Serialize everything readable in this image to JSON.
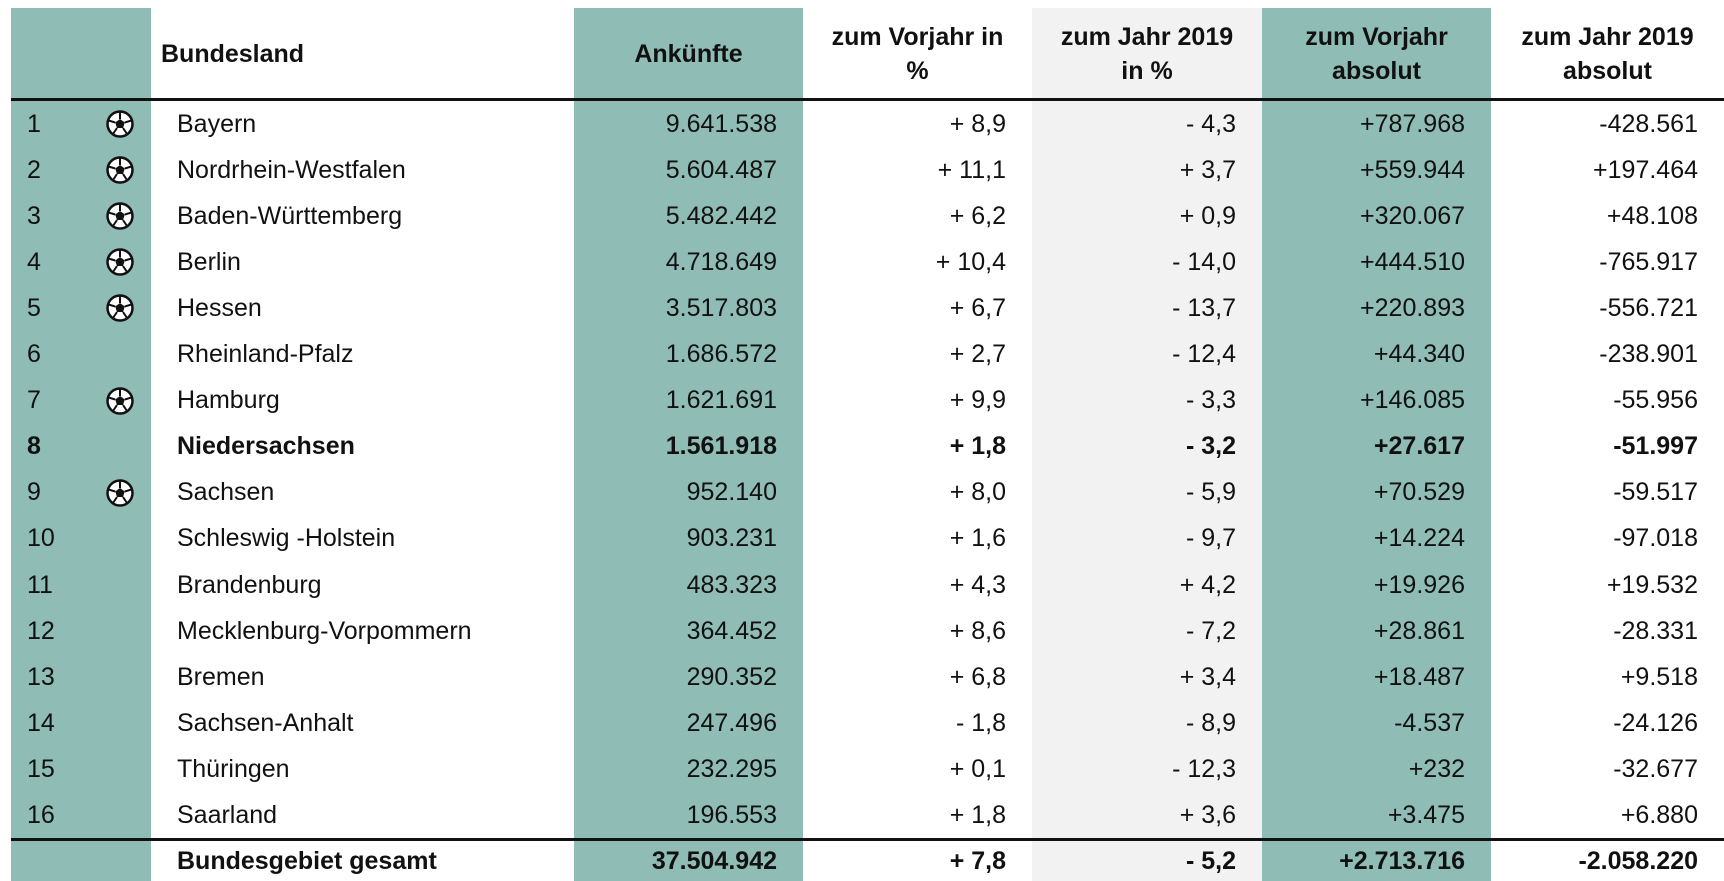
{
  "table": {
    "header": [
      null,
      null,
      [
        "Bundesland"
      ],
      [
        "Ankünfte"
      ],
      [
        "zum Vorjahr in",
        "%"
      ],
      [
        "zum Jahr 2019",
        "in %"
      ],
      [
        "zum Vorjahr",
        "absolut"
      ],
      [
        "zum Jahr 2019",
        "absolut"
      ]
    ],
    "rows": [
      {
        "rank": "1",
        "ball": true,
        "cells": [
          "Bayern",
          "9.641.538",
          "+ 8,9",
          "- 4,3",
          "+787.968",
          "-428.561"
        ]
      },
      {
        "rank": "2",
        "ball": true,
        "cells": [
          "Nordrhein-Westfalen",
          "5.604.487",
          "+ 11,1",
          "+ 3,7",
          "+559.944",
          "+197.464"
        ]
      },
      {
        "rank": "3",
        "ball": true,
        "cells": [
          "Baden-Württemberg",
          "5.482.442",
          "+ 6,2",
          "+ 0,9",
          "+320.067",
          "+48.108"
        ]
      },
      {
        "rank": "4",
        "ball": true,
        "cells": [
          "Berlin",
          "4.718.649",
          "+ 10,4",
          "- 14,0",
          "+444.510",
          "-765.917"
        ]
      },
      {
        "rank": "5",
        "ball": true,
        "cells": [
          "Hessen",
          "3.517.803",
          "+ 6,7",
          "- 13,7",
          "+220.893",
          "-556.721"
        ]
      },
      {
        "rank": "6",
        "ball": false,
        "cells": [
          "Rheinland-Pfalz",
          "1.686.572",
          "+ 2,7",
          "- 12,4",
          "+44.340",
          "-238.901"
        ]
      },
      {
        "rank": "7",
        "ball": true,
        "cells": [
          "Hamburg",
          "1.621.691",
          "+ 9,9",
          "- 3,3",
          "+146.085",
          "-55.956"
        ]
      },
      {
        "rank": "8",
        "ball": false,
        "bold": true,
        "cells": [
          "Niedersachsen",
          "1.561.918",
          "+ 1,8",
          "- 3,2",
          "+27.617",
          "-51.997"
        ]
      },
      {
        "rank": "9",
        "ball": true,
        "cells": [
          "Sachsen",
          "952.140",
          "+ 8,0",
          "- 5,9",
          "+70.529",
          "-59.517"
        ]
      },
      {
        "rank": "10",
        "ball": false,
        "cells": [
          "Schleswig -Holstein",
          "903.231",
          "+ 1,6",
          "- 9,7",
          "+14.224",
          "-97.018"
        ]
      },
      {
        "rank": "11",
        "ball": false,
        "cells": [
          "Brandenburg",
          "483.323",
          "+ 4,3",
          "+ 4,2",
          "+19.926",
          "+19.532"
        ]
      },
      {
        "rank": "12",
        "ball": false,
        "cells": [
          "Mecklenburg-Vorpommern",
          "364.452",
          "+ 8,6",
          "- 7,2",
          "+28.861",
          "-28.331"
        ]
      },
      {
        "rank": "13",
        "ball": false,
        "cells": [
          "Bremen",
          "290.352",
          "+ 6,8",
          "+ 3,4",
          "+18.487",
          "+9.518"
        ]
      },
      {
        "rank": "14",
        "ball": false,
        "cells": [
          "Sachsen-Anhalt",
          "247.496",
          "- 1,8",
          "- 8,9",
          "-4.537",
          "-24.126"
        ]
      },
      {
        "rank": "15",
        "ball": false,
        "cells": [
          "Thüringen",
          "232.295",
          "+ 0,1",
          "- 12,3",
          "+232",
          "-32.677"
        ]
      },
      {
        "rank": "16",
        "ball": false,
        "cells": [
          "Saarland",
          "196.553",
          "+ 1,8",
          "+ 3,6",
          "+3.475",
          "+6.880"
        ]
      }
    ],
    "total": [
      "Bundesgebiet gesamt",
      "37.504.942",
      "+ 7,8",
      "- 5,2",
      "+2.713.716",
      "-2.058.220"
    ]
  }
}
